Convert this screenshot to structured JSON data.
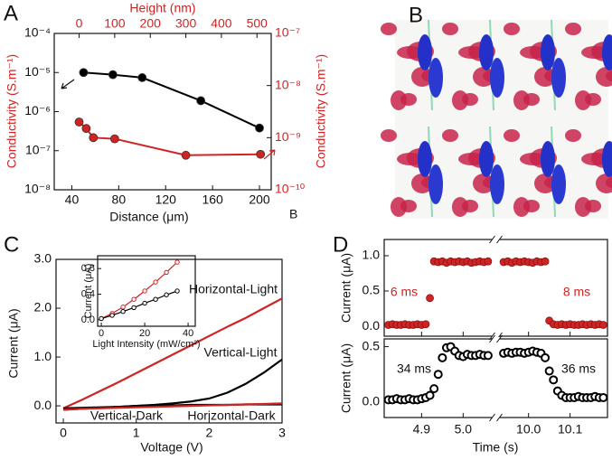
{
  "chart_data": [
    {
      "type": "scatter",
      "panel_label": "A",
      "xlabel": "Distance (μm)",
      "x2label": "Height (nm)",
      "ylabel": "Conductivity (S.m⁻¹)",
      "y2label": "Conductivity (S.m⁻¹)",
      "annotation": "B",
      "xlim": [
        25,
        210
      ],
      "xticks": [
        40,
        80,
        120,
        160,
        200
      ],
      "x2lim": [
        -70,
        540
      ],
      "x2ticks": [
        0,
        100,
        200,
        300,
        400,
        500
      ],
      "ylim": [
        1e-08,
        0.0001
      ],
      "yscale": "log",
      "yticks": [
        {
          "value": 1e-08,
          "label": "10⁻⁸"
        },
        {
          "value": 1e-07,
          "label": "10⁻⁷"
        },
        {
          "value": 1e-06,
          "label": "10⁻⁶"
        },
        {
          "value": 1e-05,
          "label": "10⁻⁵"
        },
        {
          "value": 0.0001,
          "label": "10⁻⁴"
        }
      ],
      "y2lim": [
        1e-10,
        1e-07
      ],
      "y2scale": "log",
      "y2ticks": [
        {
          "value": 1e-10,
          "label": "10⁻¹⁰"
        },
        {
          "value": 1e-09,
          "label": "10⁻⁹"
        },
        {
          "value": 1e-08,
          "label": "10⁻⁸"
        },
        {
          "value": 1e-07,
          "label": "10⁻⁷"
        }
      ],
      "series": [
        {
          "color": "#000000",
          "x": [
            50,
            75,
            100,
            150,
            200
          ],
          "values": [
            1e-05,
            8.8e-06,
            7.4e-06,
            1.9e-06,
            3.8e-07
          ]
        },
        {
          "color": "#d02424",
          "axis": "y2",
          "xaxis": "x2",
          "x": [
            0,
            20,
            40,
            100,
            300,
            510
          ],
          "values": [
            2e-09,
            1.5e-09,
            1e-09,
            9.5e-10,
            4.6e-10,
            4.8e-10
          ]
        }
      ]
    },
    {
      "type": "line",
      "panel_label": "C",
      "xlabel": "Voltage (V)",
      "ylabel": "Current (μA)",
      "xlim": [
        -0.1,
        3.0
      ],
      "xticks": [
        0,
        1,
        2,
        3
      ],
      "ylim": [
        -0.35,
        3.0
      ],
      "yticks": [
        {
          "value": 0,
          "label": "0.0"
        },
        {
          "value": 1,
          "label": "1.0"
        },
        {
          "value": 2,
          "label": "2.0"
        },
        {
          "value": 3,
          "label": "3.0"
        }
      ],
      "x": [
        0,
        0.25,
        0.5,
        0.75,
        1,
        1.25,
        1.5,
        1.75,
        2,
        2.25,
        2.5,
        2.75,
        3
      ],
      "series": [
        {
          "name": "Horizontal-Light",
          "color": "#d02424",
          "values": [
            -0.05,
            0.12,
            0.3,
            0.48,
            0.67,
            0.86,
            1.05,
            1.24,
            1.43,
            1.62,
            1.8,
            2.0,
            2.2
          ]
        },
        {
          "name": "Vertical-Light",
          "color": "#000000",
          "values": [
            -0.05,
            -0.04,
            -0.03,
            -0.02,
            0,
            0.02,
            0.05,
            0.09,
            0.15,
            0.27,
            0.45,
            0.68,
            0.95
          ]
        },
        {
          "name": "Vertical-Dark",
          "color": "#000000",
          "values": [
            -0.08,
            -0.06,
            -0.04,
            -0.02,
            0,
            0.01,
            0.01,
            0.02,
            0.02,
            0.02,
            0.03,
            0.03,
            0.03
          ]
        },
        {
          "name": "Horizontal-Dark",
          "color": "#d02424",
          "values": [
            -0.08,
            -0.06,
            -0.05,
            -0.04,
            -0.03,
            -0.02,
            -0.01,
            0,
            0.01,
            0.02,
            0.03,
            0.04,
            0.05
          ]
        }
      ],
      "inset": {
        "xlabel": "Light Intensity (mW/cm²)",
        "ylabel": "Current (μA)",
        "xlim": [
          -1.7,
          43.3
        ],
        "xticks": [
          0,
          20,
          40
        ],
        "ylim": [
          -0.1,
          1.0
        ],
        "yticks": [
          {
            "value": 0,
            "label": "0.0"
          },
          {
            "value": 0.4,
            "label": "0.4"
          },
          {
            "value": 0.8,
            "label": "0.8"
          }
        ],
        "series": [
          {
            "color": "#d02424",
            "x": [
              0,
              5,
              10,
              15,
              20,
              25,
              30,
              35
            ],
            "values": [
              0.02,
              0.1,
              0.2,
              0.32,
              0.45,
              0.59,
              0.74,
              0.9
            ]
          },
          {
            "color": "#000000",
            "x": [
              0,
              5,
              10,
              15,
              20,
              25,
              30,
              35
            ],
            "values": [
              0.02,
              0.07,
              0.13,
              0.19,
              0.26,
              0.32,
              0.39,
              0.45
            ]
          }
        ]
      }
    },
    {
      "type": "scatter",
      "panel_label": "D",
      "xlabel": "Time (s)",
      "xlim": [
        4.81,
        10.19
      ],
      "xbreak": [
        5.07,
        9.93
      ],
      "xticks": [
        {
          "value": 4.9,
          "label": "4.9"
        },
        {
          "value": 5.0,
          "label": "5.0"
        },
        {
          "value": 10.0,
          "label": "10.0"
        },
        {
          "value": 10.1,
          "label": "10.1"
        }
      ],
      "subplots": [
        {
          "ylabel": "Current (μA)",
          "ylim": [
            -0.14,
            1.23
          ],
          "yticks": [
            {
              "value": 0,
              "label": "0.0"
            },
            {
              "value": 0.5,
              "label": "0.5"
            },
            {
              "value": 1.0,
              "label": "1.0"
            }
          ],
          "annotations": [
            "6 ms",
            "8 ms"
          ],
          "series": [
            {
              "color": "#d02424",
              "x": [
                4.82,
                4.83,
                4.84,
                4.85,
                4.86,
                4.87,
                4.88,
                4.89,
                4.9,
                4.91,
                4.92,
                4.93,
                4.94,
                4.95,
                4.96,
                4.97,
                4.98,
                4.99,
                5.0,
                5.01,
                5.02,
                5.03,
                5.04,
                5.05,
                5.06,
                9.94,
                9.95,
                9.96,
                9.97,
                9.98,
                9.99,
                10.0,
                10.01,
                10.02,
                10.03,
                10.04,
                10.05,
                10.06,
                10.07,
                10.08,
                10.09,
                10.1,
                10.11,
                10.12,
                10.13,
                10.14,
                10.15,
                10.16,
                10.17,
                10.18
              ],
              "values": [
                0.02,
                0.03,
                0.02,
                0.02,
                0.03,
                0.02,
                0.02,
                0.03,
                0.02,
                0.03,
                0.4,
                0.92,
                0.91,
                0.92,
                0.9,
                0.92,
                0.91,
                0.92,
                0.91,
                0.92,
                0.9,
                0.91,
                0.92,
                0.91,
                0.92,
                0.91,
                0.92,
                0.9,
                0.92,
                0.91,
                0.92,
                0.91,
                0.9,
                0.92,
                0.91,
                0.92,
                0.08,
                0.03,
                0.02,
                0.03,
                0.02,
                0.03,
                0.02,
                0.02,
                0.03,
                0.02,
                0.03,
                0.02,
                0.03,
                0.02
              ]
            }
          ]
        },
        {
          "ylabel": "Current (μA)",
          "ylim": [
            -0.14,
            0.57
          ],
          "yticks": [
            {
              "value": 0,
              "label": "0.0"
            },
            {
              "value": 0.5,
              "label": "0.5"
            }
          ],
          "annotations": [
            "34 ms",
            "36 ms"
          ],
          "series": [
            {
              "color": "#000000",
              "x": [
                4.82,
                4.83,
                4.84,
                4.85,
                4.86,
                4.87,
                4.88,
                4.89,
                4.9,
                4.91,
                4.92,
                4.93,
                4.94,
                4.95,
                4.96,
                4.97,
                4.98,
                4.99,
                5.0,
                5.01,
                5.02,
                5.03,
                5.04,
                5.05,
                5.06,
                9.94,
                9.95,
                9.96,
                9.97,
                9.98,
                9.99,
                10.0,
                10.01,
                10.02,
                10.03,
                10.04,
                10.05,
                10.06,
                10.07,
                10.08,
                10.09,
                10.1,
                10.11,
                10.12,
                10.13,
                10.14,
                10.15,
                10.16,
                10.17,
                10.18
              ],
              "values": [
                0.02,
                0.02,
                0.03,
                0.02,
                0.02,
                0.03,
                0.02,
                0.02,
                0.03,
                0.04,
                0.06,
                0.12,
                0.25,
                0.4,
                0.49,
                0.5,
                0.46,
                0.42,
                0.41,
                0.43,
                0.42,
                0.42,
                0.43,
                0.42,
                0.42,
                0.44,
                0.45,
                0.44,
                0.45,
                0.45,
                0.44,
                0.45,
                0.46,
                0.45,
                0.44,
                0.4,
                0.28,
                0.2,
                0.1,
                0.06,
                0.04,
                0.04,
                0.04,
                0.05,
                0.04,
                0.04,
                0.04,
                0.05,
                0.04,
                0.04
              ]
            }
          ]
        }
      ]
    }
  ],
  "image_panel": {
    "label": "B"
  }
}
